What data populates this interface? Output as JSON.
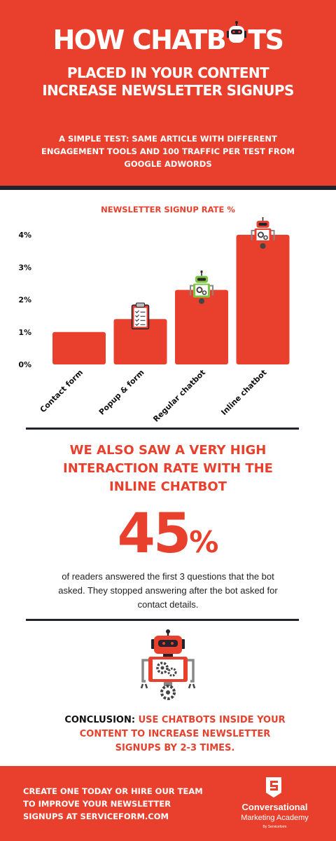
{
  "header": {
    "title_part1": "HOW CHATB",
    "title_part2": "TS",
    "subtitle": "PLACED IN YOUR CONTENT INCREASE NEWSLETTER SIGNUPS",
    "test_note": "A SIMPLE TEST: SAME ARTICLE WITH DIFFERENT ENGAGEMENT TOOLS AND 100 TRAFFIC PER TEST FROM GOOGLE ADWORDS"
  },
  "chart_data": {
    "type": "bar",
    "title": "NEWSLETTER SIGNUP RATE %",
    "categories": [
      "Contact form",
      "Popup & form",
      "Regular chatbot",
      "Inline chatbot"
    ],
    "values": [
      1.0,
      1.4,
      2.3,
      4.0
    ],
    "ylim": [
      0,
      4
    ],
    "yticks": [
      "0%",
      "1%",
      "2%",
      "3%",
      "4%"
    ],
    "grid": false,
    "bar_color": "#e8402c",
    "bar_icons": [
      "none",
      "clipboard-icon",
      "green-robot-icon",
      "red-robot-icon"
    ]
  },
  "interaction": {
    "heading": "WE ALSO SAW A VERY HIGH INTERACTION RATE WITH THE INLINE CHATBOT",
    "stat_value": "45",
    "stat_unit": "%",
    "description": "of readers answered the first 3 questions that the bot asked. They stopped answering after the bot asked for contact details."
  },
  "conclusion": {
    "label": "CONCLUSION:",
    "text": "USE CHATBOTS INSIDE YOUR CONTENT TO INCREASE NEWSLETTER SIGNUPS BY 2-3 TIMES."
  },
  "footer": {
    "cta": "CREATE ONE TODAY OR HIRE OUR TEAM TO IMPROVE YOUR NEWSLETTER SIGNUPS AT SERVICEFORM.COM",
    "logo_line1": "Conversational",
    "logo_line2": "Marketing Academy",
    "logo_line3": "By Serviceform",
    "logo_icon": "serviceform-logo-icon"
  },
  "colors": {
    "brand_red": "#e8402c",
    "dark": "#23232d",
    "robot_green": "#7ec244",
    "gear_grey": "#444444"
  }
}
